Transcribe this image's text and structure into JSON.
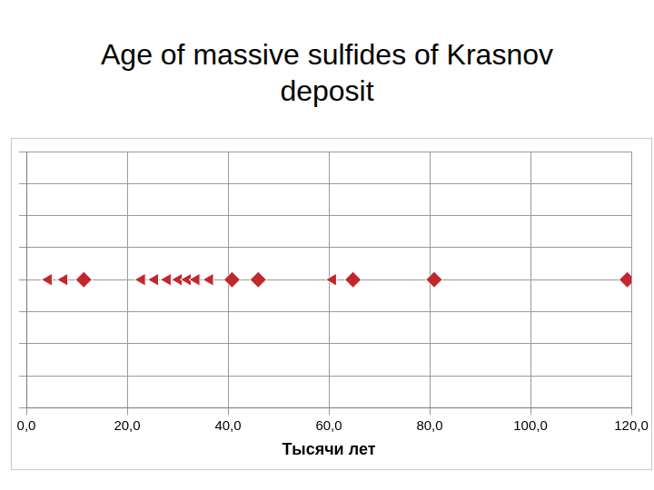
{
  "chart_data": {
    "type": "scatter",
    "title": "Age of massive sulfides of Krasnov deposit",
    "x_label": "Тысячи лет",
    "series": [
      {
        "marker": "triangle",
        "color": "#c0282d",
        "x": [
          4.4,
          7.5,
          22.9,
          25.5,
          28.0,
          30.2,
          32.0,
          33.7,
          36.4,
          60.8
        ],
        "values": [
          1,
          1,
          1,
          1,
          1,
          1,
          1,
          1,
          1,
          1
        ]
      },
      {
        "marker": "diamond",
        "color": "#c0282d",
        "x": [
          11.4,
          40.8,
          46.0,
          64.8,
          80.9,
          119.2
        ],
        "values": [
          1,
          1,
          1,
          1,
          1,
          1
        ]
      }
    ],
    "xlim": [
      0,
      120
    ],
    "xticks": [
      {
        "value": 0,
        "label": "0,0"
      },
      {
        "value": 20,
        "label": "20,0"
      },
      {
        "value": 40,
        "label": "40,0"
      },
      {
        "value": 60,
        "label": "60,0"
      },
      {
        "value": 80,
        "label": "80,0"
      },
      {
        "value": 100,
        "label": "100,0"
      },
      {
        "value": 120,
        "label": "120,0"
      }
    ],
    "ylim": [
      0,
      2
    ],
    "yticks": [
      0,
      0.25,
      0.5,
      0.75,
      1,
      1.25,
      1.5,
      1.75,
      2
    ],
    "grid": true,
    "tick_labels": "x"
  }
}
